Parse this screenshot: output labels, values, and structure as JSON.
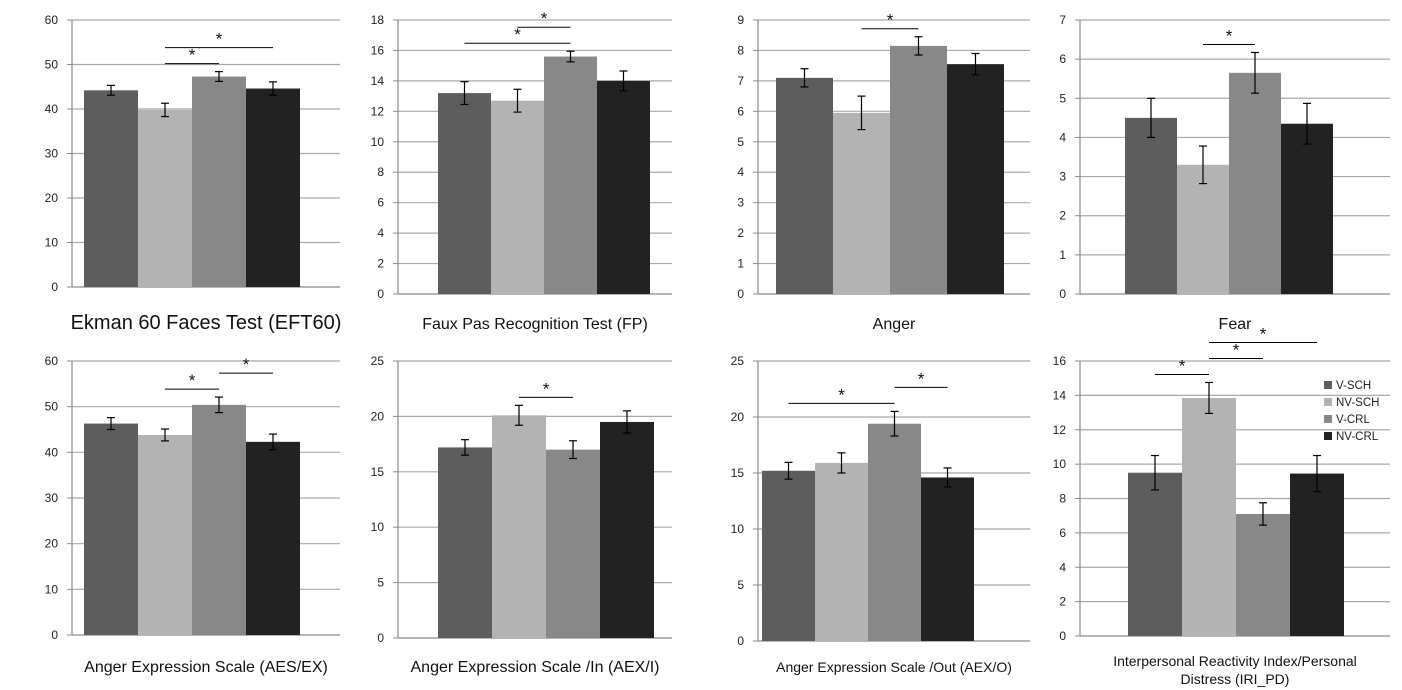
{
  "colors": {
    "V-SCH": "#5d5d5d",
    "NV-SCH": "#b3b3b3",
    "V-CRL": "#888888",
    "NV-CRL": "#222222",
    "grid": "#a8a8a8",
    "axis": "#8a8a8a"
  },
  "chart_data": [
    {
      "type": "bar",
      "title": "Ekman 60 Faces Test (EFT60)",
      "categories": [
        "V-SCH",
        "NV-SCH",
        "V-CRL",
        "NV-CRL"
      ],
      "values": [
        44.2,
        39.8,
        47.3,
        44.6
      ],
      "errors": [
        1.1,
        1.5,
        1.1,
        1.5
      ],
      "ylim": [
        0,
        60
      ],
      "yticks": [
        0,
        10,
        20,
        30,
        40,
        50,
        60
      ],
      "grid": true,
      "significance": [
        {
          "from": "NV-SCH",
          "to": "V-CRL",
          "label": "*"
        },
        {
          "from": "NV-SCH",
          "to": "NV-CRL",
          "label": "*"
        }
      ]
    },
    {
      "type": "bar",
      "title": "Faux Pas Recognition Test (FP)",
      "categories": [
        "V-SCH",
        "NV-SCH",
        "V-CRL",
        "NV-CRL"
      ],
      "values": [
        13.2,
        12.7,
        15.6,
        14.0
      ],
      "errors": [
        0.75,
        0.75,
        0.35,
        0.65
      ],
      "ylim": [
        0,
        18
      ],
      "yticks": [
        0,
        2,
        4,
        6,
        8,
        10,
        12,
        14,
        16,
        18
      ],
      "grid": true,
      "significance": [
        {
          "from": "V-SCH",
          "to": "V-CRL",
          "label": "*"
        },
        {
          "from": "NV-SCH",
          "to": "V-CRL",
          "label": "*"
        }
      ]
    },
    {
      "type": "bar",
      "title": "Anger",
      "categories": [
        "V-SCH",
        "NV-SCH",
        "V-CRL",
        "NV-CRL"
      ],
      "values": [
        7.1,
        5.95,
        8.15,
        7.55
      ],
      "errors": [
        0.3,
        0.55,
        0.3,
        0.35
      ],
      "ylim": [
        0,
        9
      ],
      "yticks": [
        0,
        1,
        2,
        3,
        4,
        5,
        6,
        7,
        8,
        9
      ],
      "grid": true,
      "significance": [
        {
          "from": "NV-SCH",
          "to": "V-CRL",
          "label": "*"
        }
      ]
    },
    {
      "type": "bar",
      "title": "Fear",
      "categories": [
        "V-SCH",
        "NV-SCH",
        "V-CRL",
        "NV-CRL"
      ],
      "values": [
        4.5,
        3.3,
        5.65,
        4.35
      ],
      "errors": [
        0.5,
        0.48,
        0.52,
        0.52
      ],
      "ylim": [
        0,
        7
      ],
      "yticks": [
        0,
        1,
        2,
        3,
        4,
        5,
        6,
        7
      ],
      "grid": true,
      "significance": [
        {
          "from": "NV-SCH",
          "to": "V-CRL",
          "label": "*"
        }
      ]
    },
    {
      "type": "bar",
      "title": "Anger Expression Scale (AES/EX)",
      "categories": [
        "V-SCH",
        "NV-SCH",
        "V-CRL",
        "NV-CRL"
      ],
      "values": [
        46.3,
        43.8,
        50.4,
        42.3
      ],
      "errors": [
        1.3,
        1.3,
        1.7,
        1.7
      ],
      "ylim": [
        0,
        60
      ],
      "yticks": [
        0,
        10,
        20,
        30,
        40,
        50,
        60
      ],
      "grid": true,
      "significance": [
        {
          "from": "NV-SCH",
          "to": "V-CRL",
          "label": "*"
        },
        {
          "from": "V-CRL",
          "to": "NV-CRL",
          "label": "*"
        }
      ]
    },
    {
      "type": "bar",
      "title": "Anger Expression Scale /In (AEX/I)",
      "categories": [
        "V-SCH",
        "NV-SCH",
        "V-CRL",
        "NV-CRL"
      ],
      "values": [
        17.2,
        20.1,
        17.0,
        19.5
      ],
      "errors": [
        0.7,
        0.9,
        0.8,
        1.0
      ],
      "ylim": [
        0,
        25
      ],
      "yticks": [
        0,
        5,
        10,
        15,
        20,
        25
      ],
      "grid": true,
      "significance": [
        {
          "from": "NV-SCH",
          "to": "V-CRL",
          "label": "*"
        }
      ]
    },
    {
      "type": "bar",
      "title": "Anger Expression Scale /Out (AEX/O)",
      "categories": [
        "V-SCH",
        "NV-SCH",
        "V-CRL",
        "NV-CRL"
      ],
      "values": [
        15.2,
        15.9,
        19.4,
        14.6
      ],
      "errors": [
        0.75,
        0.9,
        1.1,
        0.85
      ],
      "ylim": [
        0,
        25
      ],
      "yticks": [
        0,
        5,
        10,
        15,
        20,
        25
      ],
      "grid": true,
      "significance": [
        {
          "from": "V-SCH",
          "to": "V-CRL",
          "label": "*"
        },
        {
          "from": "V-CRL",
          "to": "NV-CRL",
          "label": "*"
        }
      ]
    },
    {
      "type": "bar",
      "title": "Interpersonal Reactivity Index/Personal Distress (IRI_PD)",
      "title_lines": [
        "Interpersonal Reactivity Index/Personal",
        "Distress (IRI_PD)"
      ],
      "categories": [
        "V-SCH",
        "NV-SCH",
        "V-CRL",
        "NV-CRL"
      ],
      "values": [
        9.5,
        13.85,
        7.1,
        9.45
      ],
      "errors": [
        1.0,
        0.9,
        0.65,
        1.05
      ],
      "ylim": [
        0,
        16
      ],
      "yticks": [
        0,
        2,
        4,
        6,
        8,
        10,
        12,
        14,
        16
      ],
      "grid": true,
      "legend": {
        "placement": "right",
        "entries": [
          "V-SCH",
          "NV-SCH",
          "V-CRL",
          "NV-CRL"
        ]
      },
      "significance": [
        {
          "from": "V-SCH",
          "to": "NV-SCH",
          "label": "*"
        },
        {
          "from": "NV-SCH",
          "to": "V-CRL",
          "label": "*"
        },
        {
          "from": "NV-SCH",
          "to": "NV-CRL",
          "label": "*"
        }
      ]
    }
  ]
}
